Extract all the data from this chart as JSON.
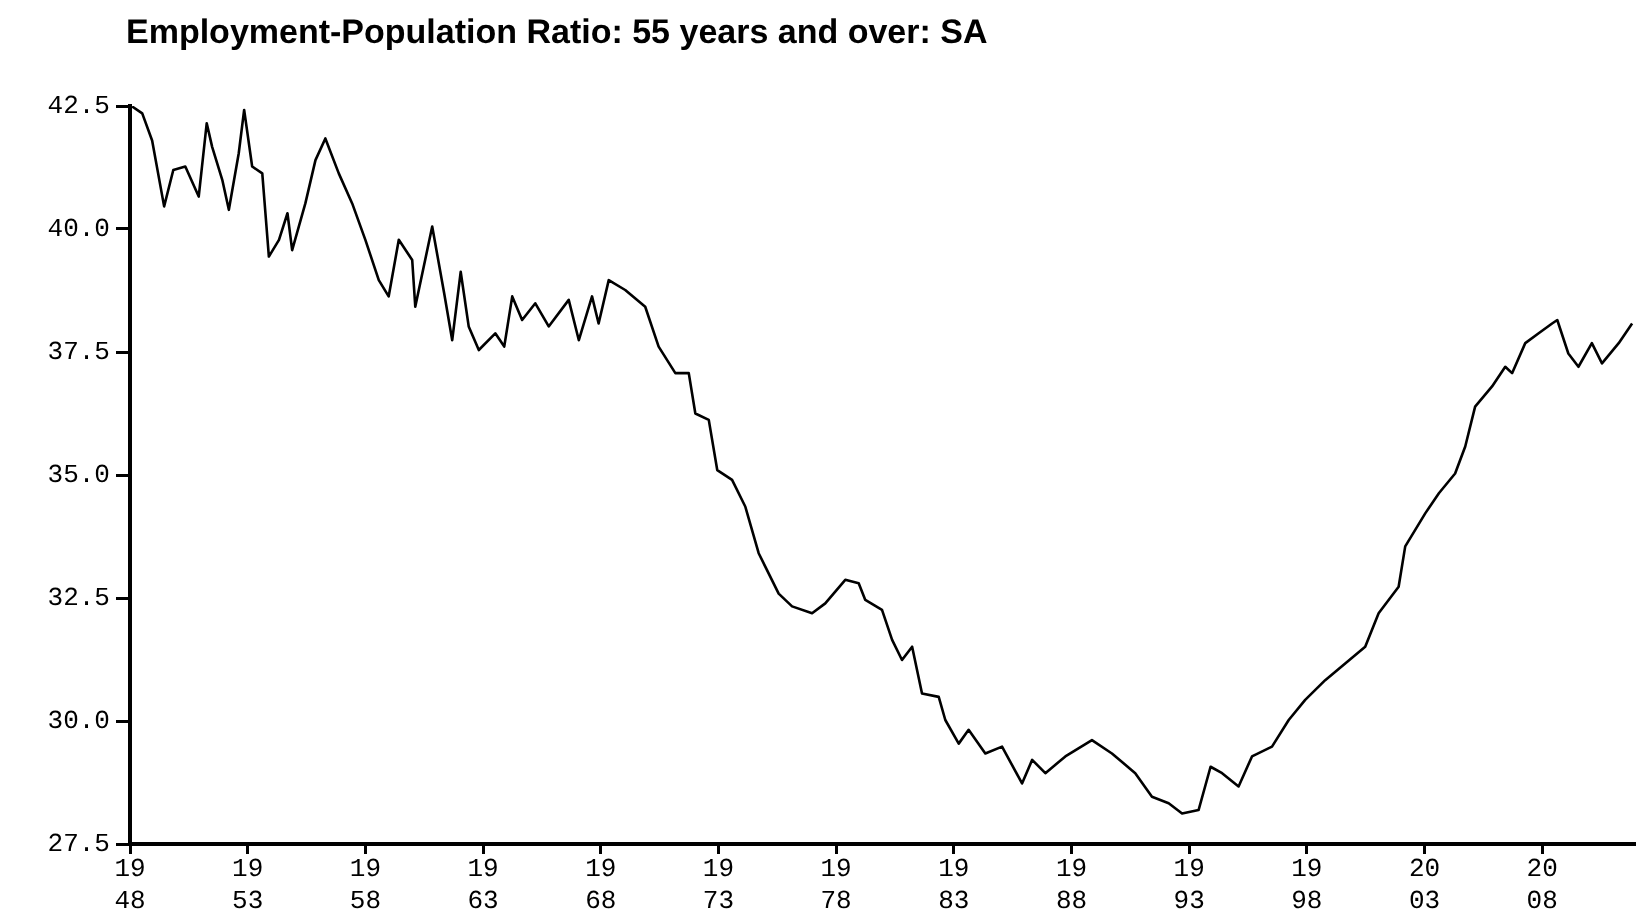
{
  "chart_data": {
    "type": "line",
    "title": "Employment-Population Ratio: 55 years and over: SA",
    "x": [
      1948.09,
      1948.52,
      1948.94,
      1949.45,
      1949.84,
      1950.35,
      1950.92,
      1951.26,
      1951.49,
      1951.92,
      1952.2,
      1952.62,
      1952.85,
      1953.19,
      1953.62,
      1953.9,
      1954.33,
      1954.69,
      1954.89,
      1955.45,
      1955.88,
      1956.3,
      1956.87,
      1957.44,
      1958.0,
      1958.57,
      1958.99,
      1959.42,
      1959.99,
      1960.12,
      1960.84,
      1961.35,
      1961.69,
      1962.05,
      1962.39,
      1962.82,
      1963.52,
      1963.9,
      1964.24,
      1964.66,
      1965.22,
      1965.79,
      1966.64,
      1967.07,
      1967.63,
      1967.91,
      1968.34,
      1969.04,
      1969.89,
      1970.46,
      1971.17,
      1971.74,
      1972.02,
      1972.59,
      1972.95,
      1973.58,
      1974.14,
      1974.71,
      1975.56,
      1976.13,
      1976.98,
      1977.54,
      1978.39,
      1978.96,
      1979.24,
      1979.95,
      1980.38,
      1980.8,
      1981.23,
      1981.65,
      1982.36,
      1982.64,
      1983.21,
      1983.63,
      1984.34,
      1985.05,
      1985.9,
      1986.33,
      1986.89,
      1987.74,
      1988.87,
      1989.72,
      1990.71,
      1991.42,
      1992.13,
      1992.7,
      1993.4,
      1993.91,
      1994.4,
      1995.1,
      1995.67,
      1996.52,
      1997.23,
      1997.93,
      1998.78,
      1999.63,
      2000.48,
      2001.05,
      2001.9,
      2002.18,
      2003.03,
      2003.61,
      2004.3,
      2004.73,
      2005.15,
      2005.87,
      2006.43,
      2006.72,
      2007.28,
      2007.85,
      2008.42,
      2008.64,
      2009.11,
      2009.54,
      2010.11,
      2010.54,
      2011.25,
      2011.82
    ],
    "series": [
      {
        "color": "#000000",
        "values": [
          42.49,
          42.35,
          41.8,
          40.46,
          41.2,
          41.27,
          40.66,
          42.15,
          41.67,
          41.0,
          40.39,
          41.54,
          42.42,
          41.27,
          41.13,
          39.44,
          39.78,
          40.32,
          39.57,
          40.52,
          41.4,
          41.84,
          41.13,
          40.52,
          39.78,
          38.96,
          38.63,
          39.78,
          39.37,
          38.42,
          40.05,
          38.69,
          37.74,
          39.13,
          38.02,
          37.54,
          37.88,
          37.61,
          38.63,
          38.15,
          38.49,
          38.02,
          38.56,
          37.74,
          38.63,
          38.08,
          38.96,
          38.76,
          38.42,
          37.61,
          37.07,
          37.07,
          36.25,
          36.12,
          35.1,
          34.9,
          34.36,
          33.41,
          32.59,
          32.33,
          32.19,
          32.39,
          32.87,
          32.8,
          32.46,
          32.26,
          31.65,
          31.24,
          31.51,
          30.56,
          30.49,
          30.02,
          29.54,
          29.82,
          29.34,
          29.48,
          28.73,
          29.21,
          28.94,
          29.28,
          29.61,
          29.34,
          28.94,
          28.46,
          28.33,
          28.12,
          28.19,
          29.07,
          28.94,
          28.67,
          29.28,
          29.48,
          30.02,
          30.43,
          30.83,
          31.17,
          31.51,
          32.19,
          32.73,
          33.55,
          34.22,
          34.63,
          35.03,
          35.58,
          36.39,
          36.8,
          37.2,
          37.07,
          37.68,
          37.88,
          38.08,
          38.15,
          37.47,
          37.2,
          37.68,
          37.27,
          37.68,
          38.08
        ]
      }
    ],
    "xlim": [
      1948,
      2011.9
    ],
    "xticks": [
      {
        "value": 1948,
        "label": "1948"
      },
      {
        "value": 1953,
        "label": "1953"
      },
      {
        "value": 1958,
        "label": "1958"
      },
      {
        "value": 1963,
        "label": "1963"
      },
      {
        "value": 1968,
        "label": "1968"
      },
      {
        "value": 1973,
        "label": "1973"
      },
      {
        "value": 1978,
        "label": "1978"
      },
      {
        "value": 1983,
        "label": "1983"
      },
      {
        "value": 1988,
        "label": "1988"
      },
      {
        "value": 1993,
        "label": "1993"
      },
      {
        "value": 1998,
        "label": "1998"
      },
      {
        "value": 2003,
        "label": "2003"
      },
      {
        "value": 2008,
        "label": "2008"
      }
    ],
    "ylim": [
      27.5,
      42.5
    ],
    "yticks": [
      27.5,
      {
        "value": 30,
        "label": "30.0"
      },
      32.5,
      {
        "value": 35,
        "label": "35.0"
      },
      37.5,
      {
        "value": 40,
        "label": "40.0"
      },
      42.5
    ],
    "grid": false,
    "legend": false,
    "marker": "none",
    "line_style": "solid"
  }
}
